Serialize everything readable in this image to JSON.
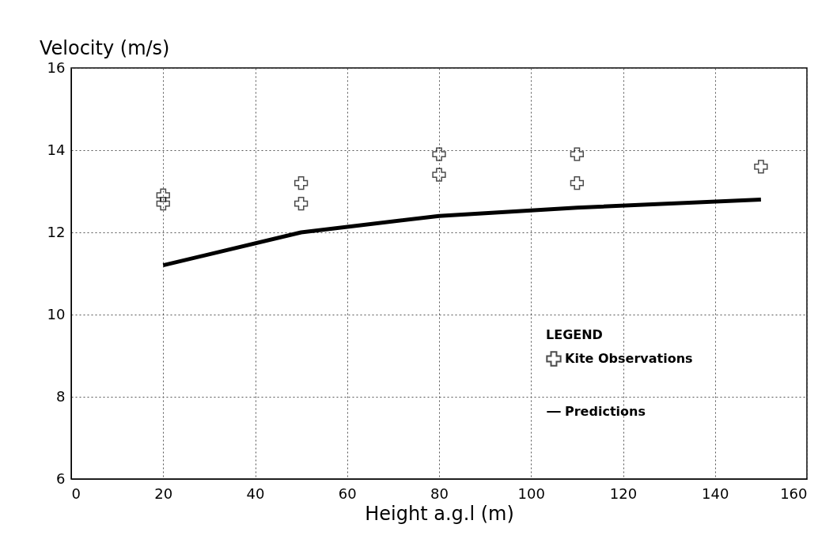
{
  "chart_data": {
    "type": "scatter",
    "ylabel": "Velocity (m/s)",
    "xlabel": "Height a.g.l (m)",
    "legend_title": "LEGEND",
    "legend": "bottom right",
    "grid": true,
    "xlim": [
      0,
      160
    ],
    "xticks": [
      0,
      20,
      40,
      60,
      80,
      100,
      120,
      140,
      160
    ],
    "ylim": [
      6,
      16
    ],
    "yticks": [
      6,
      8,
      10,
      12,
      14,
      16
    ],
    "series": [
      {
        "name": "Kite Observations",
        "marker": "cross",
        "color": "#000000",
        "x": [
          20,
          20,
          50,
          50,
          80,
          80,
          110,
          110,
          150
        ],
        "values": [
          12.9,
          12.7,
          13.2,
          12.7,
          13.9,
          13.4,
          13.9,
          13.2,
          13.6
        ]
      },
      {
        "name": "Predictions",
        "type": "line",
        "line_style": "solid",
        "color": "#000000",
        "x": [
          20,
          50,
          80,
          110,
          150
        ],
        "values": [
          11.2,
          12.0,
          12.4,
          12.6,
          12.8
        ]
      }
    ]
  }
}
